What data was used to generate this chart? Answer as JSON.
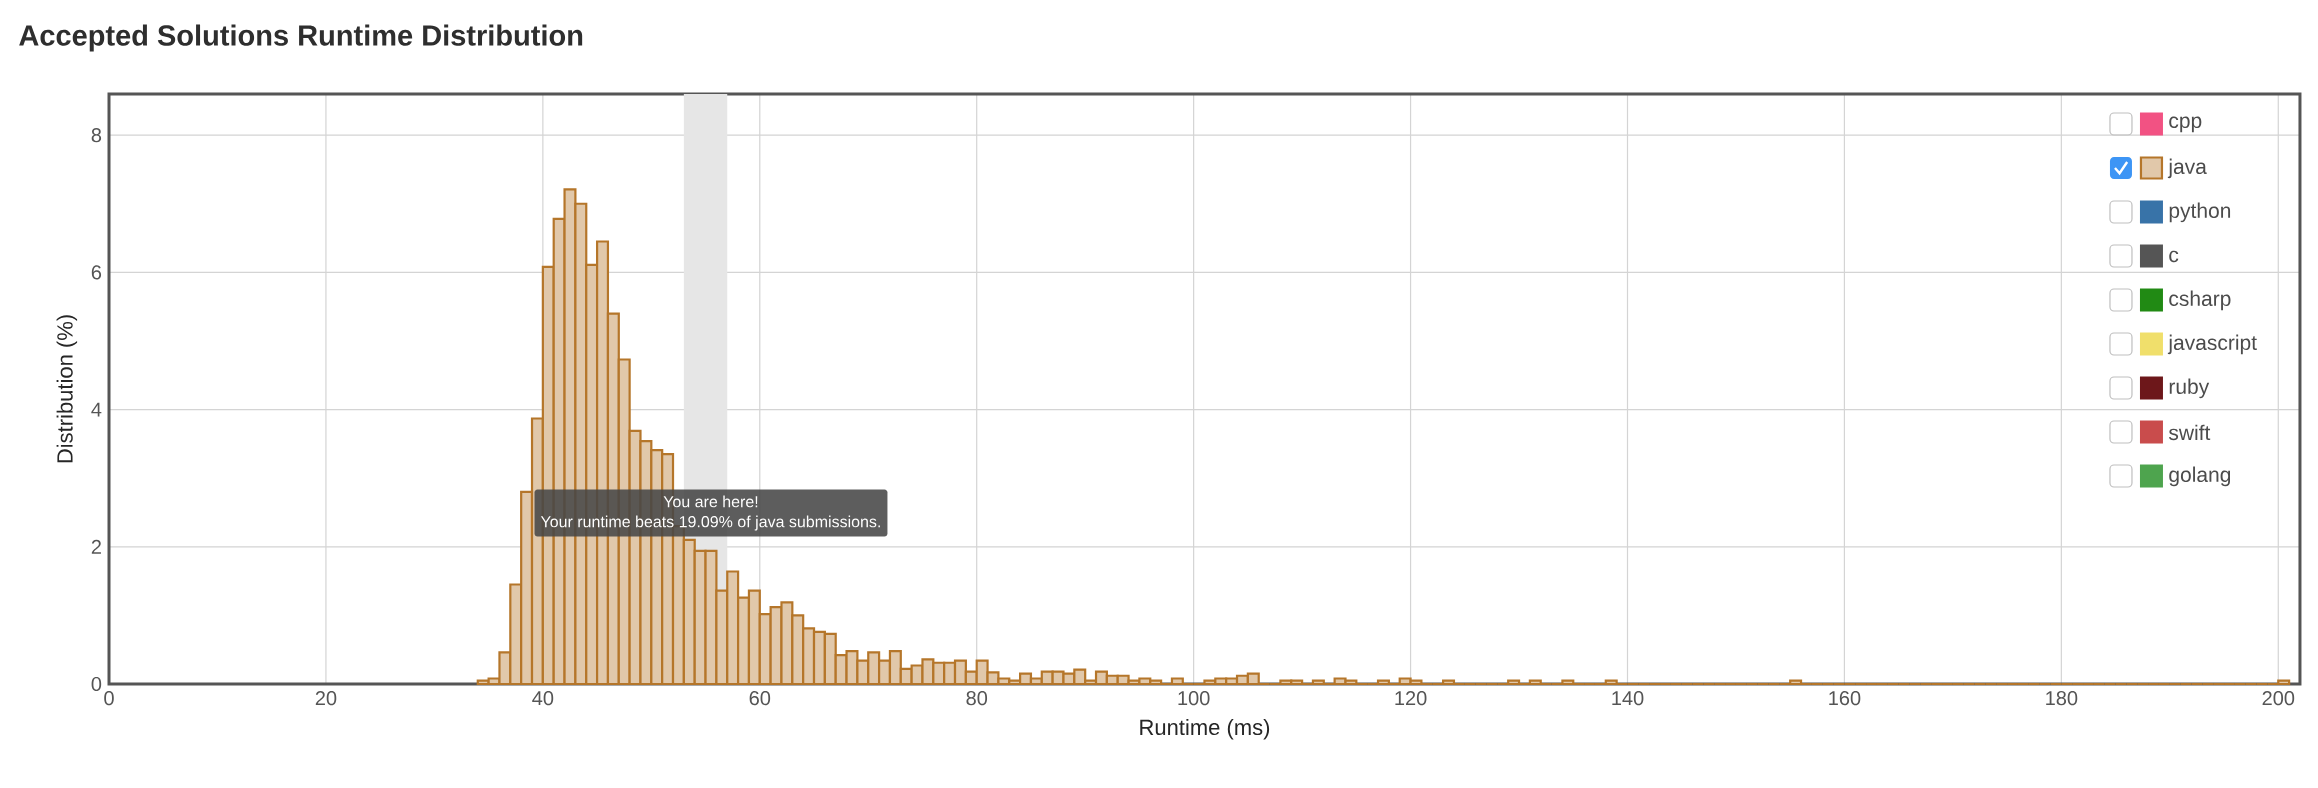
{
  "chart_data": {
    "type": "histogram",
    "title": "Accepted Solutions Runtime Distribution",
    "xlabel": "Runtime (ms)",
    "ylabel": "Distribution (%)",
    "bins": [
      34,
      35,
      36,
      37,
      38,
      39,
      40,
      41,
      42,
      43,
      44,
      45,
      46,
      47,
      48,
      49,
      50,
      51,
      52,
      53,
      54,
      55,
      56,
      57,
      58,
      59,
      60,
      61,
      62,
      63,
      64,
      65,
      66,
      67,
      68,
      69,
      70,
      71,
      72,
      73,
      74,
      75,
      76,
      77,
      78,
      79,
      80,
      81,
      82,
      83,
      84,
      85,
      86,
      87,
      88,
      89,
      90,
      91,
      92,
      93,
      94,
      95,
      96,
      97,
      98,
      99,
      100,
      101,
      102,
      103,
      104,
      105,
      106,
      107,
      108,
      109,
      110,
      111,
      112,
      113,
      114,
      115,
      116,
      117,
      118,
      119,
      120,
      121,
      122,
      123,
      124,
      125,
      126,
      127,
      128,
      129,
      130,
      131,
      132,
      133,
      134,
      135,
      136,
      137,
      138,
      139,
      140,
      141,
      142,
      143,
      144,
      145,
      146,
      147,
      148,
      149,
      150,
      151,
      152,
      153,
      154,
      155,
      156,
      157,
      158,
      159,
      160,
      161,
      162,
      163,
      164,
      165,
      166,
      167,
      168,
      169,
      170,
      171,
      172,
      173,
      174,
      175,
      176,
      177,
      178,
      179,
      180,
      181,
      182,
      183,
      184,
      185,
      186,
      187,
      188,
      189,
      190,
      191,
      192,
      193,
      194,
      195,
      196,
      197,
      198,
      199,
      200,
      201
    ],
    "series": [
      {
        "name": "cpp",
        "color": "#f25283",
        "type": "line"
      },
      {
        "name": "java",
        "color": "#b5762a",
        "values": [
          0.05,
          0.08,
          0.46,
          1.45,
          2.8,
          3.87,
          6.08,
          6.78,
          7.21,
          7.0,
          6.11,
          6.45,
          5.4,
          4.73,
          3.69,
          3.54,
          3.41,
          3.35,
          2.3,
          2.1,
          1.94,
          1.94,
          1.36,
          1.64,
          1.26,
          1.36,
          1.02,
          1.12,
          1.19,
          1.0,
          0.81,
          0.76,
          0.73,
          0.42,
          0.48,
          0.34,
          0.46,
          0.34,
          0.48,
          0.22,
          0.27,
          0.36,
          0.31,
          0.31,
          0.34,
          0.18,
          0.34,
          0.17,
          0.08,
          0.05,
          0.15,
          0.08,
          0.18,
          0.18,
          0.15,
          0.21,
          0.05,
          0.18,
          0.12,
          0.12,
          0.05,
          0.08,
          0.05,
          0,
          0.08,
          0,
          0,
          0.05,
          0.08,
          0.08,
          0.12,
          0.15,
          0,
          0,
          0.05,
          0.05,
          0,
          0.05,
          0,
          0.08,
          0.05,
          0,
          0,
          0.05,
          0,
          0.08,
          0.05,
          0,
          0,
          0.05,
          0,
          0,
          0,
          0,
          0,
          0.05,
          0,
          0.05,
          0,
          0,
          0.05,
          0,
          0,
          0,
          0.05,
          0,
          0,
          0,
          0,
          0,
          0,
          0,
          0,
          0,
          0,
          0,
          0,
          0,
          0,
          0,
          0,
          0.05,
          0,
          0,
          0,
          0,
          0,
          0,
          0,
          0,
          0,
          0,
          0,
          0,
          0,
          0,
          0,
          0,
          0,
          0,
          0,
          0,
          0,
          0,
          0,
          0,
          0,
          0,
          0,
          0,
          0,
          0,
          0,
          0,
          0,
          0,
          0,
          0,
          0,
          0,
          0,
          0,
          0,
          0,
          0,
          0,
          0.05
        ]
      },
      {
        "name": "python",
        "color": "#3873a8",
        "type": "line"
      },
      {
        "name": "c",
        "color": "#555555",
        "type": "line"
      },
      {
        "name": "csharp",
        "color": "#218a14",
        "type": "line"
      },
      {
        "name": "javascript",
        "color": "#f0df6b",
        "type": "line"
      },
      {
        "name": "ruby",
        "color": "#6d171a",
        "type": "line"
      },
      {
        "name": "swift",
        "color": "#c94c4c",
        "type": "line"
      },
      {
        "name": "golang",
        "color": "#4ea44e",
        "type": "line"
      }
    ],
    "xlim": [
      0,
      202
    ],
    "ylim": [
      0,
      8.6
    ],
    "xticks": [
      0,
      20,
      40,
      60,
      80,
      100,
      120,
      140,
      160,
      180,
      200
    ],
    "yticks": [
      0,
      2,
      4,
      6,
      8
    ],
    "grid": true,
    "legend": "top right",
    "bands": [
      {
        "axis": "x",
        "from": 53,
        "to": 57,
        "color": "#e6e6e6"
      }
    ],
    "annotations": [
      {
        "text": "You are here!",
        "x": 55.5,
        "y": 1.94
      },
      {
        "text": "Your runtime beats 19.09% of java submissions.",
        "x": 55.5,
        "y": 1.94
      }
    ]
  }
}
